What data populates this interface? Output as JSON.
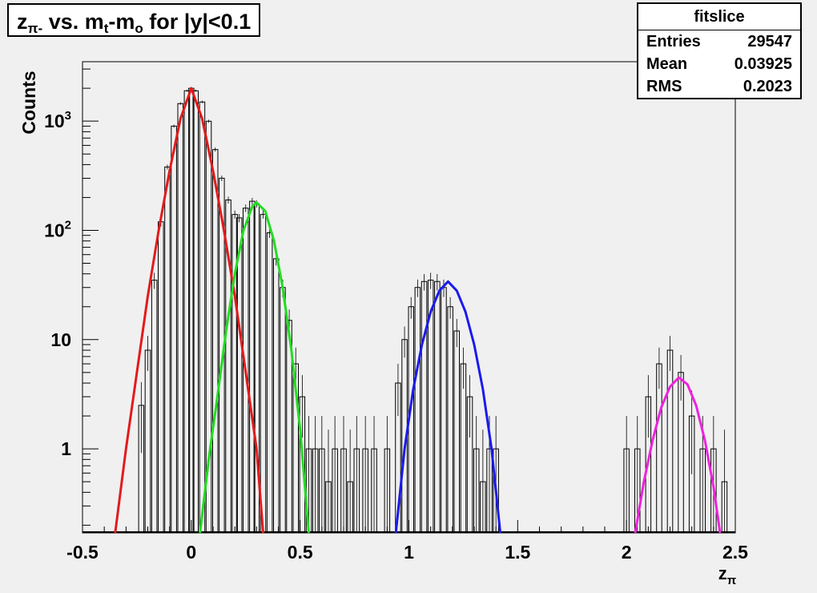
{
  "title": {
    "main": "z",
    "sub1": "π-",
    "mid1": " vs. m",
    "sub2": "t",
    "mid2": "-m",
    "sub3": "o",
    "tail": " for |y|<0.1"
  },
  "stats": {
    "name": "fitslice",
    "rows": [
      {
        "label": "Entries",
        "value": "29547"
      },
      {
        "label": "Mean",
        "value": "0.03925"
      },
      {
        "label": "RMS",
        "value": "0.2023"
      }
    ]
  },
  "chart_data": {
    "type": "line",
    "title": "zπ- vs. mt-mo for |y|<0.1",
    "xlabel": "zπ",
    "ylabel": "Counts",
    "xlim": [
      -0.5,
      2.5
    ],
    "ylim": [
      0.17,
      3500
    ],
    "yscale": "log",
    "grid": false,
    "x_ticks": [
      {
        "value": -0.5,
        "label": "-0.5"
      },
      {
        "value": 0,
        "label": "0"
      },
      {
        "value": 0.5,
        "label": "0.5"
      },
      {
        "value": 1,
        "label": "1"
      },
      {
        "value": 1.5,
        "label": "1.5"
      },
      {
        "value": 2,
        "label": "2"
      },
      {
        "value": 2.5,
        "label": "2.5"
      }
    ],
    "y_ticks": [
      {
        "value": 1,
        "label": "1"
      },
      {
        "value": 10,
        "label": "10"
      },
      {
        "value": 100,
        "label": "10",
        "sup": "2"
      },
      {
        "value": 1000,
        "label": "10",
        "sup": "3"
      }
    ],
    "histogram": {
      "x": [
        -0.23,
        -0.2,
        -0.17,
        -0.14,
        -0.11,
        -0.08,
        -0.05,
        -0.02,
        0.0,
        0.02,
        0.05,
        0.08,
        0.11,
        0.14,
        0.17,
        0.2,
        0.22,
        0.25,
        0.28,
        0.3,
        0.33,
        0.36,
        0.39,
        0.42,
        0.45,
        0.48,
        0.51,
        0.54,
        0.57,
        0.6,
        0.63,
        0.66,
        0.7,
        0.73,
        0.76,
        0.8,
        0.84,
        0.9,
        0.95,
        0.98,
        1.01,
        1.04,
        1.07,
        1.1,
        1.13,
        1.16,
        1.19,
        1.22,
        1.25,
        1.28,
        1.31,
        1.34,
        1.37,
        1.4,
        2.0,
        2.05,
        2.1,
        2.15,
        2.2,
        2.25,
        2.3,
        2.35,
        2.4,
        2.45
      ],
      "y": [
        2.5,
        8,
        35,
        120,
        380,
        900,
        1450,
        1900,
        2000,
        1900,
        1500,
        1000,
        550,
        300,
        190,
        140,
        130,
        160,
        185,
        175,
        140,
        95,
        55,
        30,
        15,
        6,
        3,
        1,
        1,
        1,
        0.5,
        1,
        1,
        0.5,
        1,
        1,
        1,
        1,
        4,
        10,
        20,
        30,
        34,
        35,
        34,
        30,
        20,
        12,
        6,
        3,
        1,
        0.5,
        1,
        1,
        1,
        1,
        3,
        6,
        8,
        5,
        2,
        1,
        1,
        0.5
      ]
    },
    "series": [
      {
        "name": "",
        "color": "#e31a1c",
        "x": [
          -0.35,
          -0.3,
          -0.25,
          -0.2,
          -0.15,
          -0.1,
          -0.05,
          0.0,
          0.05,
          0.1,
          0.15,
          0.2,
          0.25,
          0.3,
          0.33
        ],
        "y": [
          0.17,
          1.0,
          5,
          25,
          100,
          350,
          1050,
          2000,
          1050,
          350,
          100,
          25,
          5,
          1.0,
          0.17
        ]
      },
      {
        "name": "",
        "color": "#22dd22",
        "x": [
          0.04,
          0.08,
          0.12,
          0.16,
          0.2,
          0.24,
          0.28,
          0.3,
          0.34,
          0.38,
          0.42,
          0.46,
          0.5,
          0.54
        ],
        "y": [
          0.17,
          0.8,
          3,
          12,
          40,
          100,
          165,
          180,
          150,
          80,
          30,
          8,
          1.5,
          0.17
        ]
      },
      {
        "name": "",
        "color": "#1a1aee",
        "x": [
          0.94,
          0.98,
          1.02,
          1.06,
          1.1,
          1.14,
          1.18,
          1.22,
          1.26,
          1.3,
          1.34,
          1.38,
          1.42
        ],
        "y": [
          0.17,
          1.0,
          3.5,
          9,
          18,
          28,
          34,
          28,
          18,
          9,
          3.5,
          1.0,
          0.17
        ]
      },
      {
        "name": "",
        "color": "#ee22dd",
        "x": [
          2.04,
          2.08,
          2.12,
          2.16,
          2.2,
          2.24,
          2.28,
          2.32,
          2.36,
          2.4,
          2.43
        ],
        "y": [
          0.17,
          0.5,
          1.2,
          2.4,
          3.7,
          4.5,
          3.9,
          2.5,
          1.2,
          0.45,
          0.17
        ]
      }
    ]
  }
}
